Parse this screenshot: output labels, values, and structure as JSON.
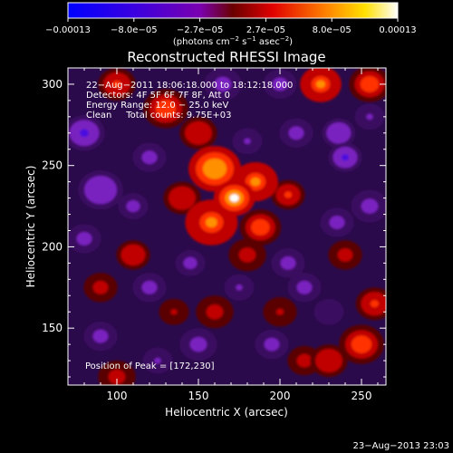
{
  "chart_data": {
    "type": "heatmap",
    "title": "Reconstructed RHESSI Image",
    "xlabel": "Heliocentric X (arcsec)",
    "ylabel": "Heliocentric Y (arcsec)",
    "xlim": [
      70,
      265
    ],
    "ylim": [
      115,
      310
    ],
    "x_ticks": [
      100,
      150,
      200,
      250
    ],
    "y_ticks": [
      150,
      200,
      250,
      300
    ],
    "colorbar": {
      "ticks": [
        "−0.00013",
        "−8.0e−05",
        "−2.7e−05",
        "2.7e−05",
        "8.0e−05",
        "0.00013"
      ],
      "min": -0.00013,
      "max": 0.00013,
      "label_main": "(photons cm",
      "label_exp1": "−2",
      "label_mid": " s",
      "label_exp2": "−1",
      "label_end": " asec",
      "label_exp3": "−2",
      "label_close": ")"
    },
    "annotations": [
      "22−Aug−2011 18:06:18.000 to 18:12:18.000",
      "Detectors: 4F 5F 6F 7F 8F, Att 0",
      "Energy Range: 12.0 − 25.0 keV",
      "Clean     Total counts: 9.75E+03"
    ],
    "peak_label": "Position of Peak = [172,230]",
    "sources": [
      {
        "x": 172,
        "y": 230,
        "v": 0.00013,
        "s": 11
      },
      {
        "x": 160,
        "y": 248,
        "v": 0.0001,
        "s": 14
      },
      {
        "x": 185,
        "y": 240,
        "v": 9e-05,
        "s": 12
      },
      {
        "x": 158,
        "y": 215,
        "v": 9e-05,
        "s": 14
      },
      {
        "x": 188,
        "y": 212,
        "v": 7e-05,
        "s": 11
      },
      {
        "x": 205,
        "y": 232,
        "v": 6e-05,
        "s": 9
      },
      {
        "x": 140,
        "y": 230,
        "v": 5e-05,
        "s": 10
      },
      {
        "x": 150,
        "y": 270,
        "v": 5e-05,
        "s": 10
      },
      {
        "x": 180,
        "y": 195,
        "v": 4e-05,
        "s": 10
      },
      {
        "x": 225,
        "y": 300,
        "v": 8e-05,
        "s": 11
      },
      {
        "x": 255,
        "y": 300,
        "v": 7e-05,
        "s": 11
      },
      {
        "x": 130,
        "y": 285,
        "v": 7e-05,
        "s": 12
      },
      {
        "x": 100,
        "y": 300,
        "v": 6e-05,
        "s": 10
      },
      {
        "x": 240,
        "y": 195,
        "v": 4e-05,
        "s": 9
      },
      {
        "x": 258,
        "y": 165,
        "v": 6e-05,
        "s": 10
      },
      {
        "x": 250,
        "y": 140,
        "v": 7e-05,
        "s": 12
      },
      {
        "x": 230,
        "y": 130,
        "v": 5e-05,
        "s": 10
      },
      {
        "x": 110,
        "y": 195,
        "v": 5e-05,
        "s": 9
      },
      {
        "x": 90,
        "y": 175,
        "v": 4e-05,
        "s": 9
      },
      {
        "x": 100,
        "y": 120,
        "v": 4e-05,
        "s": 10
      },
      {
        "x": 160,
        "y": 160,
        "v": 4e-05,
        "s": 10
      },
      {
        "x": 200,
        "y": 160,
        "v": 3e-05,
        "s": 9
      },
      {
        "x": 135,
        "y": 160,
        "v": 3e-05,
        "s": 8
      },
      {
        "x": 215,
        "y": 130,
        "v": 4e-05,
        "s": 9
      },
      {
        "x": 240,
        "y": 255,
        "v": -9e-05,
        "s": 9
      },
      {
        "x": 236,
        "y": 270,
        "v": -7e-05,
        "s": 9
      },
      {
        "x": 80,
        "y": 270,
        "v": -8e-05,
        "s": 11
      },
      {
        "x": 90,
        "y": 235,
        "v": -7e-05,
        "s": 12
      },
      {
        "x": 110,
        "y": 225,
        "v": -5e-05,
        "s": 8
      },
      {
        "x": 210,
        "y": 270,
        "v": -6e-05,
        "s": 9
      },
      {
        "x": 200,
        "y": 300,
        "v": -5e-05,
        "s": 9
      },
      {
        "x": 205,
        "y": 190,
        "v": -6e-05,
        "s": 9
      },
      {
        "x": 175,
        "y": 175,
        "v": -4e-05,
        "s": 8
      },
      {
        "x": 215,
        "y": 175,
        "v": -5e-05,
        "s": 9
      },
      {
        "x": 120,
        "y": 175,
        "v": -6e-05,
        "s": 9
      },
      {
        "x": 145,
        "y": 190,
        "v": -5e-05,
        "s": 8
      },
      {
        "x": 165,
        "y": 300,
        "v": -6e-05,
        "s": 10
      },
      {
        "x": 180,
        "y": 265,
        "v": -4e-05,
        "s": 8
      },
      {
        "x": 235,
        "y": 215,
        "v": -6e-05,
        "s": 9
      },
      {
        "x": 255,
        "y": 225,
        "v": -5e-05,
        "s": 10
      },
      {
        "x": 120,
        "y": 255,
        "v": -5e-05,
        "s": 9
      },
      {
        "x": 150,
        "y": 140,
        "v": -6e-05,
        "s": 10
      },
      {
        "x": 195,
        "y": 140,
        "v": -5e-05,
        "s": 9
      },
      {
        "x": 90,
        "y": 145,
        "v": -6e-05,
        "s": 9
      },
      {
        "x": 125,
        "y": 130,
        "v": -4e-05,
        "s": 8
      },
      {
        "x": 230,
        "y": 160,
        "v": -3e-05,
        "s": 8
      },
      {
        "x": 255,
        "y": 280,
        "v": -4e-05,
        "s": 8
      },
      {
        "x": 80,
        "y": 205,
        "v": -5e-05,
        "s": 9
      }
    ]
  },
  "footer": {
    "timestamp": "23−Aug−2013 23:03"
  }
}
